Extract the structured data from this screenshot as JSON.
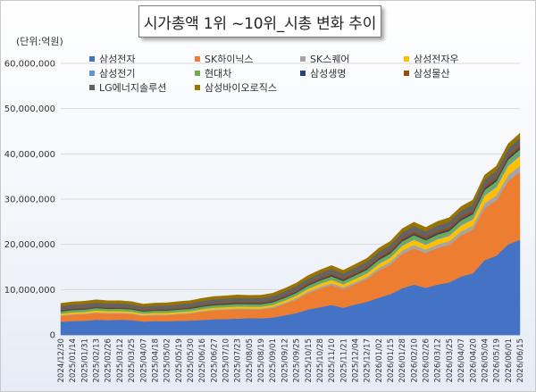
{
  "title": "시가총액 1위 ~10위_시총 변화 추이",
  "unit_label": "(단위:억원)",
  "chart_data": {
    "type": "area",
    "stacked": true,
    "grid": "horizontal",
    "legend_position": "top",
    "ylim": [
      0,
      60000000
    ],
    "y_ticks": [
      "0",
      "10,000,000",
      "20,000,000",
      "30,000,000",
      "40,000,000",
      "50,000,000",
      "60,000,000"
    ],
    "x": [
      "2024/12/30",
      "2025/01/14",
      "2025/01/31",
      "2025/02/13",
      "2025/02/26",
      "2025/03/12",
      "2025/03/25",
      "2025/04/07",
      "2025/04/18",
      "2025/05/02",
      "2025/05/19",
      "2025/05/30",
      "2025/06/16",
      "2025/06/27",
      "2025/07/10",
      "2025/07/23",
      "2025/08/05",
      "2025/08/19",
      "2025/09/01",
      "2025/09/12",
      "2025/09/25",
      "2025/10/15",
      "2025/10/28",
      "2025/11/10",
      "2025/11/21",
      "2025/12/04",
      "2025/12/17",
      "2026/01/02",
      "2026/01/15",
      "2026/01/28",
      "2026/02/10",
      "2026/02/26",
      "2026/03/12",
      "2026/03/25",
      "2026/04/07",
      "2026/04/20",
      "2026/05/04",
      "2026/05/19",
      "2026/06/01",
      "2026/06/15"
    ],
    "series": [
      {
        "name": "삼성전자",
        "color": "#4472C4",
        "values": [
          2900000,
          3050000,
          3100000,
          3350000,
          3250000,
          3350000,
          3250000,
          2950000,
          3050000,
          3000000,
          3100000,
          3150000,
          3300000,
          3450000,
          3500000,
          3600000,
          3700000,
          3650000,
          3850000,
          4300000,
          4800000,
          5600000,
          6100000,
          6600000,
          6000000,
          6700000,
          7300000,
          8200000,
          9000000,
          10300000,
          11100000,
          10400000,
          11100000,
          11600000,
          12900000,
          13600000,
          16500000,
          17500000,
          20000000,
          21000000
        ]
      },
      {
        "name": "SK하이닉스",
        "color": "#ED7D31",
        "values": [
          1300000,
          1400000,
          1450000,
          1500000,
          1450000,
          1400000,
          1350000,
          1250000,
          1300000,
          1350000,
          1450000,
          1550000,
          1800000,
          1950000,
          2000000,
          2050000,
          1900000,
          1950000,
          2100000,
          2500000,
          3000000,
          3600000,
          4100000,
          4400000,
          4100000,
          4500000,
          5000000,
          6000000,
          6500000,
          7600000,
          8000000,
          7700000,
          8100000,
          8300000,
          9100000,
          9600000,
          11500000,
          12200000,
          14000000,
          15000000
        ]
      },
      {
        "name": "SK스퀘어",
        "color": "#A5A5A5",
        "values": [
          150000,
          160000,
          165000,
          170000,
          165000,
          160000,
          160000,
          150000,
          155000,
          160000,
          170000,
          180000,
          200000,
          210000,
          220000,
          225000,
          215000,
          220000,
          235000,
          270000,
          310000,
          360000,
          400000,
          440000,
          410000,
          450000,
          500000,
          580000,
          630000,
          720000,
          770000,
          740000,
          780000,
          800000,
          870000,
          920000,
          1080000,
          1150000,
          1300000,
          1400000
        ]
      },
      {
        "name": "삼성전자우",
        "color": "#FFC000",
        "values": [
          330000,
          350000,
          355000,
          380000,
          370000,
          380000,
          370000,
          340000,
          350000,
          345000,
          355000,
          360000,
          375000,
          390000,
          395000,
          405000,
          415000,
          410000,
          430000,
          480000,
          530000,
          610000,
          660000,
          710000,
          650000,
          720000,
          780000,
          870000,
          950000,
          1080000,
          1160000,
          1090000,
          1160000,
          1210000,
          1340000,
          1410000,
          1700000,
          1800000,
          2050000,
          2150000
        ]
      },
      {
        "name": "삼성전기",
        "color": "#5B9BD5",
        "values": [
          70000,
          72000,
          74000,
          75000,
          74000,
          72000,
          70000,
          66000,
          68000,
          70000,
          72000,
          74000,
          78000,
          80000,
          82000,
          84000,
          83000,
          85000,
          90000,
          100000,
          115000,
          130000,
          145000,
          160000,
          150000,
          165000,
          180000,
          210000,
          230000,
          260000,
          280000,
          270000,
          290000,
          300000,
          330000,
          350000,
          410000,
          440000,
          500000,
          540000
        ]
      },
      {
        "name": "현대차",
        "color": "#70AD47",
        "values": [
          440000,
          450000,
          455000,
          460000,
          455000,
          450000,
          445000,
          420000,
          430000,
          440000,
          445000,
          450000,
          460000,
          470000,
          475000,
          480000,
          475000,
          480000,
          490000,
          510000,
          530000,
          560000,
          580000,
          600000,
          590000,
          610000,
          630000,
          660000,
          680000,
          700000,
          720000,
          710000,
          730000,
          740000,
          760000,
          780000,
          820000,
          840000,
          870000,
          890000
        ]
      },
      {
        "name": "삼성생명",
        "color": "#264478",
        "values": [
          180000,
          185000,
          188000,
          190000,
          188000,
          186000,
          184000,
          175000,
          180000,
          185000,
          190000,
          195000,
          205000,
          215000,
          220000,
          225000,
          222000,
          225000,
          230000,
          240000,
          250000,
          265000,
          275000,
          285000,
          280000,
          290000,
          300000,
          315000,
          325000,
          340000,
          350000,
          345000,
          355000,
          360000,
          375000,
          385000,
          410000,
          420000,
          440000,
          450000
        ]
      },
      {
        "name": "삼성물산",
        "color": "#9E480E",
        "values": [
          180000,
          185000,
          188000,
          190000,
          188000,
          186000,
          184000,
          175000,
          180000,
          185000,
          195000,
          205000,
          220000,
          235000,
          240000,
          245000,
          240000,
          245000,
          250000,
          265000,
          280000,
          300000,
          315000,
          330000,
          320000,
          335000,
          350000,
          375000,
          390000,
          410000,
          425000,
          415000,
          430000,
          440000,
          460000,
          475000,
          510000,
          525000,
          550000,
          565000
        ]
      },
      {
        "name": "LG에너지솔루션",
        "color": "#636363",
        "values": [
          850000,
          860000,
          870000,
          840000,
          820000,
          790000,
          770000,
          730000,
          760000,
          780000,
          800000,
          820000,
          850000,
          870000,
          880000,
          890000,
          870000,
          880000,
          900000,
          930000,
          960000,
          1000000,
          1030000,
          1060000,
          1040000,
          1070000,
          1100000,
          1140000,
          1170000,
          1210000,
          1240000,
          1220000,
          1250000,
          1270000,
          1310000,
          1340000,
          1400000,
          1430000,
          1480000,
          1510000
        ]
      },
      {
        "name": "삼성바이오로직스",
        "color": "#997300",
        "values": [
          580000,
          590000,
          600000,
          610000,
          600000,
          590000,
          580000,
          560000,
          570000,
          580000,
          590000,
          600000,
          610000,
          620000,
          625000,
          630000,
          625000,
          630000,
          640000,
          660000,
          680000,
          710000,
          730000,
          750000,
          740000,
          760000,
          780000,
          810000,
          830000,
          860000,
          880000,
          870000,
          890000,
          900000,
          930000,
          950000,
          1000000,
          1020000,
          1060000,
          1080000
        ]
      }
    ]
  }
}
